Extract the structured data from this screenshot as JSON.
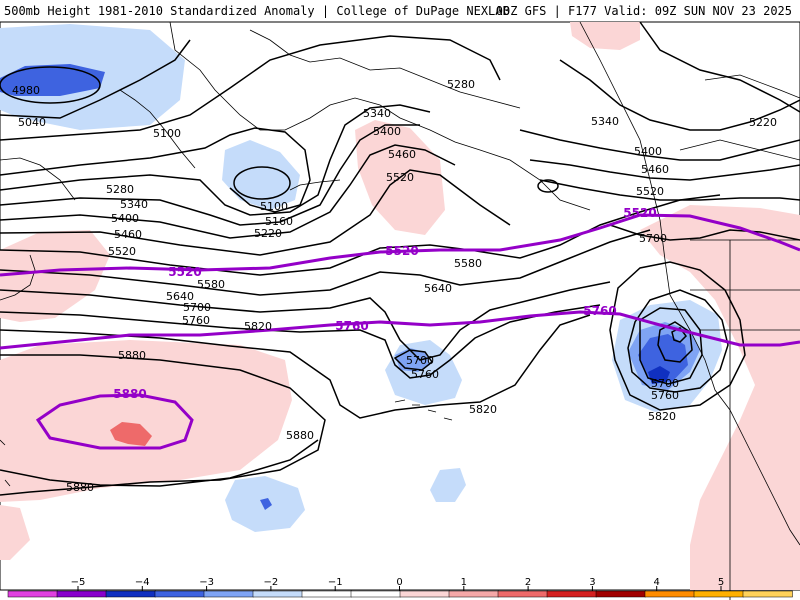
{
  "header": {
    "title": "500mb Height 1981-2010 Standardized Anomaly | College of DuPage NEXLAB",
    "run_info": "00Z GFS | F177 Valid: 09Z SUN NOV 23 2025"
  },
  "contour_labels": [
    {
      "text": "4980"
    },
    {
      "text": "5040"
    },
    {
      "text": "5100"
    },
    {
      "text": "5280"
    },
    {
      "text": "5340"
    },
    {
      "text": "5400"
    },
    {
      "text": "5460"
    },
    {
      "text": "5520"
    },
    {
      "text": "5580"
    },
    {
      "text": "5640"
    },
    {
      "text": "5700"
    },
    {
      "text": "5760"
    },
    {
      "text": "5820"
    },
    {
      "text": "5880"
    },
    {
      "text": "5100"
    },
    {
      "text": "5160"
    },
    {
      "text": "5220"
    },
    {
      "text": "5340"
    },
    {
      "text": "5400"
    },
    {
      "text": "5460"
    },
    {
      "text": "5520"
    },
    {
      "text": "5580"
    },
    {
      "text": "5640"
    },
    {
      "text": "5700"
    },
    {
      "text": "5760"
    },
    {
      "text": "5820"
    },
    {
      "text": "5280"
    },
    {
      "text": "5340"
    },
    {
      "text": "5220"
    },
    {
      "text": "5400"
    },
    {
      "text": "5460"
    },
    {
      "text": "5520"
    },
    {
      "text": "5700"
    },
    {
      "text": "5760"
    },
    {
      "text": "5820"
    },
    {
      "text": "5700"
    },
    {
      "text": "5880"
    },
    {
      "text": "5880"
    }
  ],
  "climo_labels": [
    {
      "text": "5520"
    },
    {
      "text": "5520"
    },
    {
      "text": "5520"
    },
    {
      "text": "5760"
    },
    {
      "text": "5760"
    },
    {
      "text": "5880"
    }
  ],
  "colorbar": {
    "ticks": [
      "−5",
      "−4",
      "−3",
      "−2",
      "−1",
      "0",
      "1",
      "2",
      "3",
      "4",
      "5"
    ],
    "colors": [
      "#e040e0",
      "#8800cc",
      "#1030c0",
      "#3e63e0",
      "#7fa4f4",
      "#c5dcfa",
      "#ffffff",
      "#ffffff",
      "#fbd6d6",
      "#f5a8a8",
      "#ee6a6a",
      "#d42020",
      "#a00000",
      "#ff8c00",
      "#ffb000",
      "#ffd25a"
    ]
  },
  "colors": {
    "neg1": "#c5dcfa",
    "neg2": "#7fa4f4",
    "neg3": "#3e63e0",
    "neg4": "#1030c0",
    "pos1": "#fbd6d6",
    "pos2": "#f5a8a8",
    "pos3": "#ee6a6a",
    "climo": "#9400c8",
    "contour": "#000000",
    "coast": "#000000"
  }
}
